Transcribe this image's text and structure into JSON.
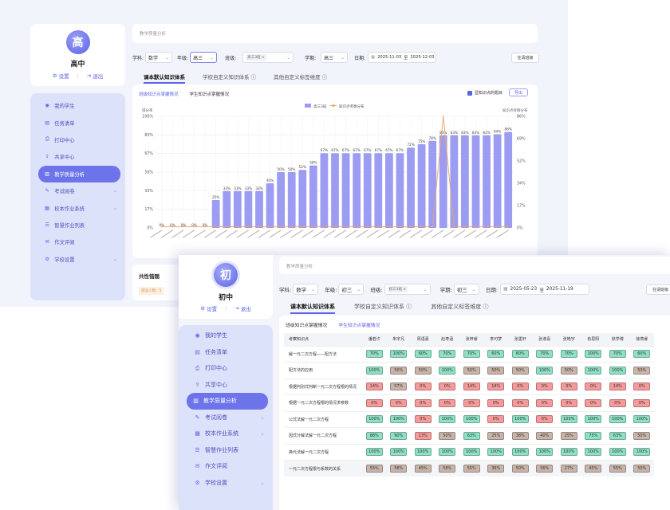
{
  "back": {
    "profile": {
      "avatar_char": "高",
      "name": "高中",
      "settings": "设置",
      "logout": "退出"
    },
    "nav": [
      {
        "label": "我的学生",
        "icon": "user-icon",
        "chevron": false
      },
      {
        "label": "任务清单",
        "icon": "list-icon",
        "chevron": false
      },
      {
        "label": "打印中心",
        "icon": "printer-icon",
        "chevron": false
      },
      {
        "label": "共享中心",
        "icon": "share-icon",
        "chevron": false
      },
      {
        "label": "教学质量分析",
        "icon": "analytics-icon",
        "chevron": false,
        "active": true
      },
      {
        "label": "考试阅卷",
        "icon": "exam-icon",
        "chevron": true
      },
      {
        "label": "校本作业系统",
        "icon": "homework-icon",
        "chevron": true
      },
      {
        "label": "智慧作业列表",
        "icon": "smart-list-icon",
        "chevron": false
      },
      {
        "label": "作文评阅",
        "icon": "essay-icon",
        "chevron": false
      },
      {
        "label": "学校设置",
        "icon": "school-settings-icon",
        "chevron": true
      }
    ],
    "breadcrumb": "教学质量分析",
    "filters": {
      "subject_label": "学科:",
      "subject_value": "数学",
      "grade_label": "年级:",
      "grade_value": "高三",
      "class_label": "班级:",
      "class_tag": "高三3班",
      "term_label": "学期:",
      "term_value": "高三",
      "date_label": "日期:",
      "date_start": "2025-11-03",
      "date_sep": "至",
      "date_end": "2025-12-03",
      "right_button": "在请班级"
    },
    "tabs": [
      "课本默认知识体系",
      "学校自定义知识体系",
      "其他自定义标签维度"
    ],
    "subtabs": [
      "班级知识点掌握情况",
      "学生知识点掌握情况"
    ],
    "checkbox_label": "显知识点的题目",
    "export_button": "导出",
    "common_errors_title": "共性错题",
    "common_errors_tag": "错误人数：5"
  },
  "chart_data": {
    "type": "bar",
    "title": "",
    "ylabel_left": "得分率",
    "ylabel_right": "知识点考察分布",
    "legend": [
      "高三3班",
      "知识点考察分布"
    ],
    "left_ticks": [
      "100%",
      "83%",
      "67%",
      "50%",
      "33%",
      "17%",
      "0%"
    ],
    "right_ticks": [
      "86%",
      "69%",
      "52%",
      "34%",
      "17%",
      "0%"
    ],
    "ylim": [
      0,
      100
    ],
    "values": [
      0,
      0,
      0,
      0,
      0,
      25,
      33,
      33,
      33,
      33,
      40,
      50,
      50,
      52,
      56,
      67,
      67,
      67,
      67,
      67,
      67,
      67,
      67,
      72,
      75,
      78,
      83,
      83,
      83,
      83,
      83,
      84,
      86
    ],
    "value_labels": [
      "0%",
      "0%",
      "0%",
      "0%",
      "0%",
      "25%",
      "33%",
      "33%",
      "33%",
      "33%",
      "40%",
      "50%",
      "50%",
      "52%",
      "56%",
      "67%",
      "67%",
      "67%",
      "67%",
      "67%",
      "67%",
      "67%",
      "67%",
      "72%",
      "75%",
      "78%",
      "83%",
      "83%",
      "83%",
      "83%",
      "83%",
      "84%",
      "86%"
    ],
    "line_values": [
      1,
      1,
      1,
      1,
      1,
      1,
      1,
      1,
      1,
      1,
      1,
      1,
      1,
      1,
      1,
      1,
      1,
      1,
      1,
      1,
      1,
      1,
      1,
      1,
      1,
      1,
      86,
      1,
      1,
      1,
      1,
      1,
      1
    ],
    "colors": {
      "bar": "#9b9cf2",
      "line": "#f2a35c",
      "grid": "#eceef4"
    }
  },
  "front": {
    "profile": {
      "avatar_char": "初",
      "name": "初中",
      "settings": "设置",
      "logout": "退出"
    },
    "nav": [
      {
        "label": "我的学生",
        "icon": "user-icon",
        "chevron": false
      },
      {
        "label": "任务清单",
        "icon": "list-icon",
        "chevron": false
      },
      {
        "label": "打印中心",
        "icon": "printer-icon",
        "chevron": false
      },
      {
        "label": "共享中心",
        "icon": "share-icon",
        "chevron": false
      },
      {
        "label": "教学质量分析",
        "icon": "analytics-icon",
        "chevron": false,
        "active": true
      },
      {
        "label": "考试阅卷",
        "icon": "exam-icon",
        "chevron": true
      },
      {
        "label": "校本作业系统",
        "icon": "homework-icon",
        "chevron": true
      },
      {
        "label": "智慧作业列表",
        "icon": "smart-list-icon",
        "chevron": false
      },
      {
        "label": "作文评阅",
        "icon": "essay-icon",
        "chevron": false
      },
      {
        "label": "学校设置",
        "icon": "school-settings-icon",
        "chevron": true
      }
    ],
    "breadcrumb": "教学质量分析",
    "filters": {
      "subject_label": "学科:",
      "subject_value": "数学",
      "grade_label": "年级:",
      "grade_value": "初三",
      "class_label": "班级:",
      "class_tag": "初三3班",
      "term_label": "学期:",
      "term_value": "初三",
      "date_label": "日期:",
      "date_start": "2025-05-23",
      "date_sep": "至",
      "date_end": "2025-11-19",
      "right_button": "在请班级"
    },
    "tabs": [
      "课本默认知识体系",
      "学校自定义知识体系",
      "其他自定义标签维度"
    ],
    "subtabs": [
      "班级知识点掌握情况",
      "学生知识点掌握情况"
    ],
    "table": {
      "first_header": "考察知识点",
      "students": [
        "潘若汐",
        "朱宇凡",
        "周语嘉",
        "赵寿涵",
        "张梓睿",
        "李可梦",
        "张墨轩",
        "张淑喜",
        "张皓宇",
        "俞思阳",
        "徐学博",
        "徐燕睿"
      ],
      "rows": [
        {
          "topic": "解一元二次方程——配方法",
          "values": [
            "70%",
            "100%",
            "60%",
            "70%",
            "70%",
            "60%",
            "60%",
            "70%",
            "70%",
            "100%",
            "70%",
            "60%"
          ]
        },
        {
          "topic": "配方法的应用",
          "values": [
            "100%",
            "50%",
            "50%",
            "100%",
            "50%",
            "50%",
            "50%",
            "100%",
            "50%",
            "100%",
            "100%",
            "50%"
          ]
        },
        {
          "topic": "根据判别式判断一元二次方程根的情况",
          "values": [
            "14%",
            "57%",
            "0%",
            "0%",
            "14%",
            "14%",
            "0%",
            "0%",
            "0%",
            "0%",
            "14%",
            "0%"
          ]
        },
        {
          "topic": "根据一元二次方程根的情况求参数",
          "values": [
            "0%",
            "0%",
            "0%",
            "0%",
            "0%",
            "0%",
            "0%",
            "0%",
            "0%",
            "0%",
            "0%",
            "0%"
          ]
        },
        {
          "topic": "公式法解一元二次方程",
          "values": [
            "100%",
            "100%",
            "0%",
            "100%",
            "100%",
            "0%",
            "100%",
            "0%",
            "100%",
            "100%",
            "100%",
            "100%"
          ]
        },
        {
          "topic": "因式分解法解一元二次方程",
          "values": [
            "88%",
            "90%",
            "13%",
            "50%",
            "63%",
            "25%",
            "38%",
            "40%",
            "25%",
            "75%",
            "63%",
            "50%"
          ]
        },
        {
          "topic": "换元法解一元二次方程",
          "values": [
            "100%",
            "100%",
            "100%",
            "100%",
            "100%",
            "100%",
            "100%",
            "100%",
            "100%",
            "100%",
            "100%",
            "100%"
          ]
        },
        {
          "topic": "一元二次方程根与系数的关系",
          "values": [
            "55%",
            "58%",
            "45%",
            "58%",
            "55%",
            "36%",
            "50%",
            "56%",
            "27%",
            "45%",
            "55%",
            "50%"
          ]
        }
      ]
    },
    "colors": {
      "high": "#8fe0c4",
      "mid": "#c9b4a9",
      "low": "#f59a9a"
    }
  }
}
